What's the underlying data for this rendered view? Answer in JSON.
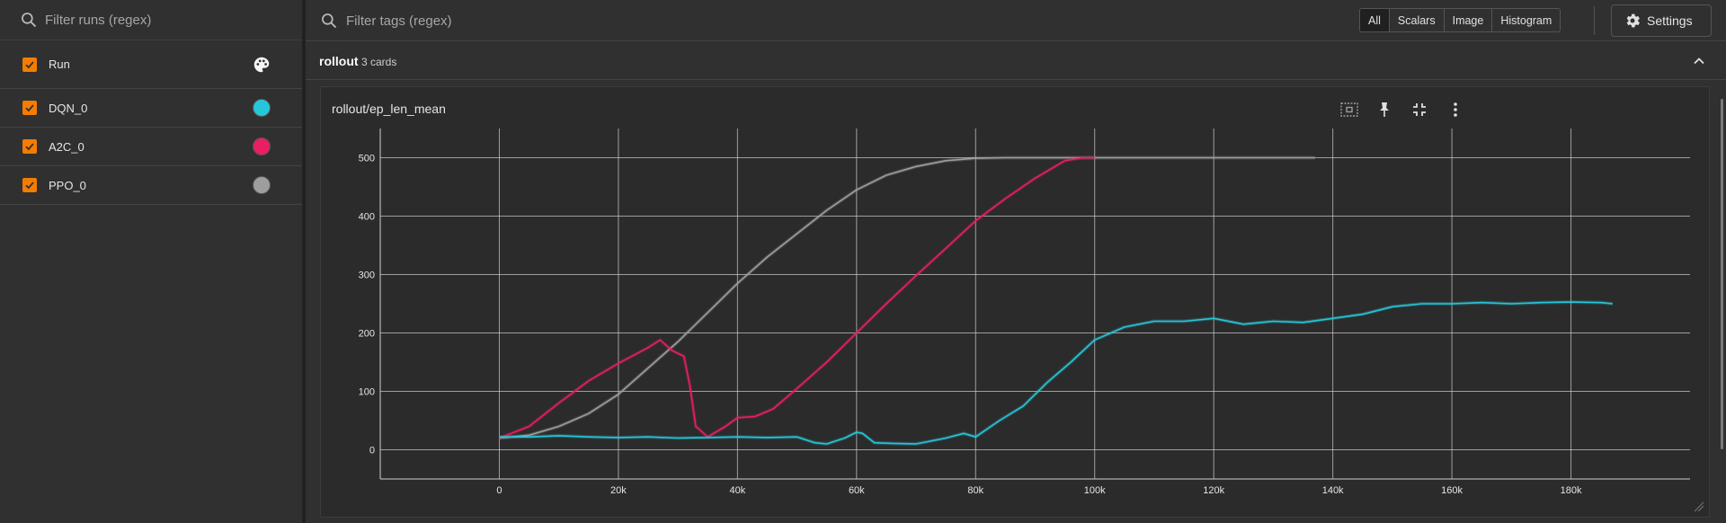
{
  "sidebar": {
    "search_placeholder": "Filter runs (regex)",
    "header_label": "Run",
    "runs": [
      {
        "label": "DQN_0",
        "color": "#26c6da"
      },
      {
        "label": "A2C_0",
        "color": "#e91e63"
      },
      {
        "label": "PPO_0",
        "color": "#9e9e9e"
      }
    ]
  },
  "topbar": {
    "search_placeholder": "Filter tags (regex)",
    "filters": [
      "All",
      "Scalars",
      "Image",
      "Histogram"
    ],
    "active_filter": "All",
    "settings_label": "Settings"
  },
  "group": {
    "title": "rollout",
    "count": "3 cards"
  },
  "card": {
    "title": "rollout/ep_len_mean"
  },
  "chart_data": {
    "type": "line",
    "title": "rollout/ep_len_mean",
    "xlim": [
      -20000,
      200000
    ],
    "ylim": [
      -50,
      550
    ],
    "x_ticks": [
      0,
      20000,
      40000,
      60000,
      80000,
      100000,
      120000,
      140000,
      160000,
      180000
    ],
    "x_tick_labels": [
      "0",
      "20k",
      "40k",
      "60k",
      "80k",
      "100k",
      "120k",
      "140k",
      "160k",
      "180k"
    ],
    "y_ticks": [
      0,
      100,
      200,
      300,
      400,
      500
    ],
    "y_tick_labels": [
      "0",
      "100",
      "200",
      "300",
      "400",
      "500"
    ],
    "grid": true,
    "series": [
      {
        "name": "PPO_0",
        "color": "#9e9e9e",
        "x": [
          0,
          5000,
          10000,
          15000,
          20000,
          25000,
          30000,
          35000,
          40000,
          45000,
          50000,
          55000,
          60000,
          65000,
          70000,
          75000,
          80000,
          85000,
          90000,
          100000,
          110000,
          120000,
          130000,
          137000
        ],
        "y": [
          20,
          25,
          40,
          62,
          95,
          140,
          185,
          235,
          285,
          330,
          370,
          410,
          445,
          470,
          485,
          495,
          499,
          500,
          500,
          500,
          500,
          500,
          500,
          500
        ]
      },
      {
        "name": "A2C_0",
        "color": "#e91e63",
        "x": [
          0,
          5000,
          10000,
          15000,
          20000,
          25000,
          27000,
          29000,
          31000,
          32000,
          33000,
          35000,
          38000,
          40000,
          43000,
          46000,
          50000,
          55000,
          60000,
          65000,
          70000,
          75000,
          80000,
          85000,
          90000,
          95000,
          98000,
          100000
        ],
        "y": [
          20,
          40,
          80,
          118,
          148,
          175,
          188,
          170,
          160,
          110,
          40,
          22,
          40,
          55,
          57,
          70,
          105,
          150,
          200,
          250,
          298,
          345,
          392,
          430,
          465,
          495,
          500,
          500
        ]
      },
      {
        "name": "DQN_0",
        "color": "#26c6da",
        "x": [
          0,
          5000,
          10000,
          15000,
          20000,
          25000,
          30000,
          35000,
          40000,
          45000,
          50000,
          53000,
          55000,
          58000,
          60000,
          61000,
          63000,
          66000,
          70000,
          75000,
          78000,
          80000,
          84000,
          88000,
          92000,
          96000,
          100000,
          105000,
          110000,
          115000,
          120000,
          125000,
          130000,
          135000,
          140000,
          145000,
          150000,
          155000,
          160000,
          165000,
          170000,
          175000,
          180000,
          185000,
          187000
        ],
        "y": [
          22,
          22,
          24,
          22,
          21,
          22,
          20,
          21,
          22,
          21,
          22,
          12,
          10,
          20,
          30,
          28,
          12,
          11,
          10,
          20,
          28,
          22,
          50,
          75,
          115,
          150,
          188,
          210,
          220,
          220,
          225,
          215,
          220,
          218,
          225,
          232,
          245,
          250,
          250,
          252,
          250,
          252,
          253,
          252,
          250
        ]
      }
    ]
  }
}
